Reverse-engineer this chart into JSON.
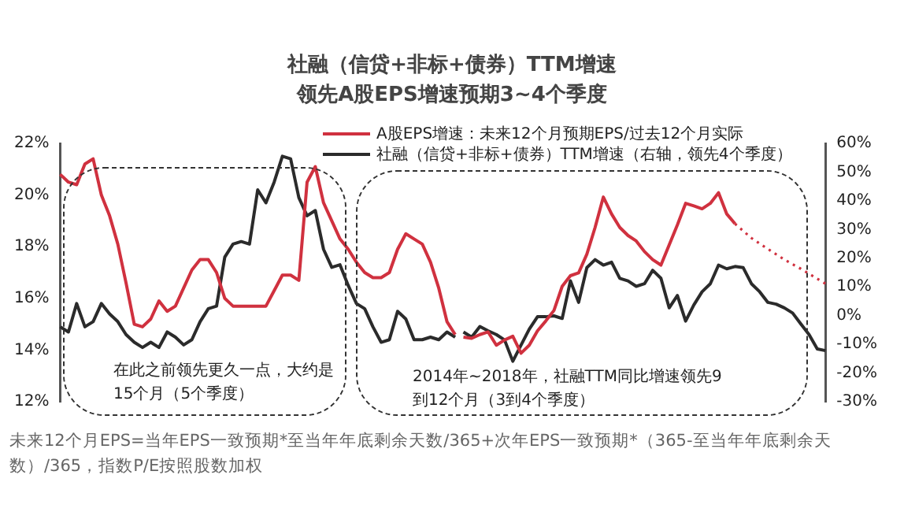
{
  "chart_data": {
    "type": "line",
    "title": "社融（信贷+非标+债券）TTM增速",
    "subtitle": "领先A股EPS增速预期3~4个季度",
    "categories": [
      null,
      null,
      null,
      null,
      null,
      null,
      null,
      null,
      null,
      null,
      null,
      null,
      null,
      null,
      null,
      null,
      null,
      null,
      null,
      null,
      null,
      null,
      null,
      null,
      null,
      null,
      null,
      null,
      null,
      null,
      null,
      null,
      null,
      null,
      null,
      null,
      null,
      null,
      null,
      null,
      null,
      null,
      null,
      null,
      null,
      null,
      null,
      null,
      null,
      null,
      null,
      null,
      null,
      null,
      null,
      null,
      null,
      null,
      null,
      null,
      null,
      null,
      null,
      null,
      null,
      null,
      null,
      null,
      null,
      null,
      null,
      null,
      null,
      null,
      null,
      null,
      null,
      null,
      null,
      null,
      null,
      null,
      null,
      null,
      null,
      null,
      null,
      null,
      null,
      null,
      null,
      null,
      null,
      null
    ],
    "series": [
      {
        "name": "A股EPS增速：未来12个月预期EPS/过去12个月实际",
        "color": "#d0313f",
        "values": [
          20.8,
          20.5,
          20.4,
          21.2,
          21.4,
          20.0,
          19.2,
          18.1,
          16.6,
          15.0,
          14.9,
          15.2,
          15.9,
          15.5,
          15.7,
          16.4,
          17.1,
          17.5,
          17.5,
          17.0,
          16.0,
          15.7,
          15.7,
          15.7,
          15.7,
          15.7,
          16.3,
          16.9,
          16.9,
          16.7,
          20.5,
          21.1,
          19.7,
          19.0,
          18.3,
          17.9,
          17.4,
          17.0,
          16.8,
          16.8,
          17.0,
          17.9,
          18.5,
          18.3,
          18.1,
          17.4,
          16.4,
          15.1,
          14.6,
          null,
          null,
          null,
          null,
          null,
          null,
          null,
          null,
          null,
          null,
          null,
          null,
          null,
          null,
          null,
          null,
          null,
          null,
          null,
          null,
          null,
          null,
          null,
          null,
          null,
          null,
          null,
          null,
          null,
          null,
          null,
          null,
          null,
          null,
          null,
          null,
          null,
          null,
          null,
          null,
          null,
          null,
          null,
          null,
          null
        ]
      },
      {
        "name": "社融（信贷+非标+债券）TTM增速（右轴，领先4个季度）",
        "color": "#2b2b2b",
        "values": [
          14.9,
          14.7,
          15.8,
          14.9,
          15.1,
          15.8,
          15.4,
          15.1,
          14.6,
          14.3,
          14.1,
          14.3,
          14.1,
          14.7,
          14.5,
          14.2,
          14.4,
          15.1,
          15.6,
          15.7,
          17.6,
          18.1,
          18.2,
          18.1,
          20.2,
          19.7,
          20.5,
          21.5,
          21.4,
          19.9,
          19.2,
          19.4,
          17.9,
          17.2,
          17.3,
          16.5,
          15.8,
          15.6,
          14.9,
          14.3,
          14.4,
          15.5,
          15.2,
          14.4,
          14.4,
          14.5,
          14.4,
          14.7,
          14.5,
          null,
          null,
          null,
          null,
          null,
          null,
          null,
          null,
          null,
          null,
          null,
          null,
          null,
          null,
          null,
          null,
          null,
          null,
          null,
          null,
          null,
          null,
          null,
          null,
          null,
          null,
          null,
          null,
          null,
          null,
          null,
          null,
          null,
          null,
          null,
          null,
          null,
          null,
          null,
          null,
          null,
          null,
          null,
          null,
          null
        ]
      },
      {
        "color": "#d0313f",
        "axis": "y2",
        "values": [
          null,
          null,
          null,
          null,
          null,
          null,
          null,
          null,
          null,
          null,
          null,
          null,
          null,
          null,
          null,
          null,
          null,
          null,
          null,
          null,
          null,
          null,
          null,
          null,
          null,
          null,
          null,
          null,
          null,
          null,
          null,
          null,
          null,
          null,
          null,
          null,
          null,
          null,
          null,
          null,
          null,
          null,
          null,
          null,
          null,
          null,
          null,
          null,
          null,
          -7.5,
          -7.9,
          -6.6,
          -5.7,
          -10.3,
          -8.5,
          -7.2,
          -13.1,
          -10.3,
          -5.3,
          -1.9,
          1.8,
          10.2,
          13.9,
          14.9,
          21.4,
          30.7,
          41.3,
          35.4,
          30.7,
          27.9,
          26.0,
          22.3,
          19.5,
          17.6,
          24.6,
          31.6,
          39.1,
          38.2,
          37.2,
          39.1,
          42.8,
          35.4,
          32.0,
          null,
          null,
          null,
          null,
          null,
          null,
          null,
          null,
          null,
          null,
          null
        ]
      },
      {
        "color": "#d0313f",
        "axis": "y2",
        "line_style": "dotted",
        "values": [
          null,
          null,
          null,
          null,
          null,
          null,
          null,
          null,
          null,
          null,
          null,
          null,
          null,
          null,
          null,
          null,
          null,
          null,
          null,
          null,
          null,
          null,
          null,
          null,
          null,
          null,
          null,
          null,
          null,
          null,
          null,
          null,
          null,
          null,
          null,
          null,
          null,
          null,
          null,
          null,
          null,
          null,
          null,
          null,
          null,
          null,
          null,
          null,
          null,
          null,
          null,
          null,
          null,
          null,
          null,
          null,
          null,
          null,
          null,
          null,
          null,
          null,
          null,
          null,
          null,
          null,
          null,
          null,
          null,
          null,
          null,
          null,
          null,
          null,
          null,
          null,
          null,
          null,
          null,
          null,
          null,
          null,
          32.0,
          null,
          27.0,
          null,
          23.2,
          null,
          19.5,
          null,
          16.3,
          null,
          null,
          11.1
        ]
      },
      {
        "color": "#2b2b2b",
        "axis": "y2",
        "values": [
          null,
          null,
          null,
          null,
          null,
          null,
          null,
          null,
          null,
          null,
          null,
          null,
          null,
          null,
          null,
          null,
          null,
          null,
          null,
          null,
          null,
          null,
          null,
          null,
          null,
          null,
          null,
          null,
          null,
          null,
          null,
          null,
          null,
          null,
          null,
          null,
          null,
          null,
          null,
          null,
          null,
          null,
          null,
          null,
          null,
          null,
          null,
          null,
          null,
          -5.7,
          -7.5,
          -3.8,
          -5.3,
          -6.6,
          -8.5,
          -15.9,
          -10.3,
          -4.7,
          -0.4,
          -0.4,
          -0.1,
          -1.0,
          12.1,
          4.6,
          16.7,
          19.5,
          17.6,
          18.6,
          13.0,
          12.1,
          10.2,
          11.1,
          15.8,
          13.0,
          2.7,
          7.0,
          -1.9,
          3.7,
          8.3,
          11.1,
          17.6,
          16.3,
          17.1,
          16.7,
          11.1,
          8.3,
          4.6,
          4.0,
          2.7,
          0.9,
          -2.9,
          -6.6,
          -11.6,
          -12.2
        ]
      }
    ],
    "ylim": [
      12,
      22
    ],
    "yticks": [
      {
        "value": 12,
        "label": "12%"
      },
      {
        "value": 14,
        "label": "14%"
      },
      {
        "value": 16,
        "label": "16%"
      },
      {
        "value": 18,
        "label": "18%"
      },
      {
        "value": 20,
        "label": "20%"
      },
      {
        "value": 22,
        "label": "22%"
      }
    ],
    "y2lim": [
      -30,
      60
    ],
    "y2ticks": [
      {
        "value": -30,
        "label": "-30%"
      },
      {
        "value": -20,
        "label": "-20%"
      },
      {
        "value": -10,
        "label": "-10%"
      },
      {
        "value": 0,
        "label": "0%"
      },
      {
        "value": 10,
        "label": "10%"
      },
      {
        "value": 20,
        "label": "20%"
      },
      {
        "value": 30,
        "label": "30%"
      },
      {
        "value": 40,
        "label": "40%"
      },
      {
        "value": 50,
        "label": "50%"
      },
      {
        "value": 60,
        "label": "60%"
      }
    ],
    "grid": false,
    "legend": "top right",
    "marker": "none",
    "line_style": "solid",
    "annotations": [
      "在此之前领先更久一点，大约是15个月（5个季度）",
      "2014年~2018年，社融TTM同比增速领先9到12个月（3到4个季度）",
      "未来12个月EPS=当年EPS一致预期*至当年年底剩余天数/365+次年EPS一致预期*（365-至当年年底剩余天数）/365，指数P/E按照股数加权"
    ]
  }
}
